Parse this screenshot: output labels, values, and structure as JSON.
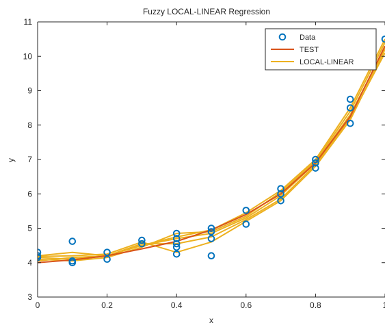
{
  "chart_data": {
    "type": "scatter",
    "title": "Fuzzy LOCAL-LINEAR Regression",
    "xlabel": "x",
    "ylabel": "y",
    "xlim": [
      0,
      1
    ],
    "ylim": [
      3,
      11
    ],
    "xticks": [
      0,
      0.2,
      0.4,
      0.6,
      0.8,
      1
    ],
    "xtick_labels": [
      "0",
      "0.2",
      "0.4",
      "0.6",
      "0.8",
      "1"
    ],
    "yticks": [
      3,
      4,
      5,
      6,
      7,
      8,
      9,
      10,
      11
    ],
    "ytick_labels": [
      "3",
      "4",
      "5",
      "6",
      "7",
      "8",
      "9",
      "10",
      "11"
    ],
    "grid": false,
    "legend_position": "top-right",
    "legend": [
      "Data",
      "TEST",
      "LOCAL-LINEAR"
    ],
    "colors": {
      "data": "#0072BD",
      "test": "#D95319",
      "local_linear": "#EDB120",
      "axes": "#262626"
    },
    "series": [
      {
        "name": "Data",
        "kind": "markers",
        "points": [
          [
            0,
            4.3
          ],
          [
            0,
            4.2
          ],
          [
            0,
            4.15
          ],
          [
            0.1,
            4.62
          ],
          [
            0.1,
            4.05
          ],
          [
            0.1,
            4.0
          ],
          [
            0.2,
            4.3
          ],
          [
            0.2,
            4.1
          ],
          [
            0.3,
            4.65
          ],
          [
            0.3,
            4.55
          ],
          [
            0.4,
            4.85
          ],
          [
            0.4,
            4.7
          ],
          [
            0.4,
            4.55
          ],
          [
            0.4,
            4.45
          ],
          [
            0.4,
            4.25
          ],
          [
            0.5,
            5.0
          ],
          [
            0.5,
            4.9
          ],
          [
            0.5,
            4.7
          ],
          [
            0.5,
            4.2
          ],
          [
            0.6,
            5.52
          ],
          [
            0.6,
            5.12
          ],
          [
            0.7,
            6.15
          ],
          [
            0.7,
            6.0
          ],
          [
            0.7,
            5.8
          ],
          [
            0.8,
            7.0
          ],
          [
            0.8,
            6.9
          ],
          [
            0.8,
            6.75
          ],
          [
            0.9,
            8.75
          ],
          [
            0.9,
            8.5
          ],
          [
            0.9,
            8.05
          ],
          [
            1.0,
            10.5
          ]
        ]
      },
      {
        "name": "TEST",
        "kind": "line",
        "points": [
          [
            0,
            4.0
          ],
          [
            0.1,
            4.08
          ],
          [
            0.2,
            4.2
          ],
          [
            0.3,
            4.4
          ],
          [
            0.4,
            4.62
          ],
          [
            0.5,
            4.95
          ],
          [
            0.6,
            5.4
          ],
          [
            0.7,
            6.0
          ],
          [
            0.8,
            6.9
          ],
          [
            0.9,
            8.25
          ],
          [
            1.0,
            10.3
          ]
        ]
      },
      {
        "name": "LOCAL-LINEAR",
        "kind": "lines",
        "lines": [
          [
            [
              0,
              4.15
            ],
            [
              0.1,
              4.1
            ],
            [
              0.2,
              4.2
            ],
            [
              0.3,
              4.5
            ],
            [
              0.4,
              4.7
            ],
            [
              0.5,
              4.85
            ],
            [
              0.6,
              5.3
            ],
            [
              0.7,
              5.95
            ],
            [
              0.8,
              6.9
            ],
            [
              0.9,
              8.3
            ],
            [
              1.0,
              10.25
            ]
          ],
          [
            [
              0,
              4.2
            ],
            [
              0.1,
              4.3
            ],
            [
              0.2,
              4.2
            ],
            [
              0.3,
              4.55
            ],
            [
              0.4,
              4.55
            ],
            [
              0.5,
              4.75
            ],
            [
              0.6,
              5.25
            ],
            [
              0.7,
              5.85
            ],
            [
              0.8,
              6.85
            ],
            [
              0.9,
              8.2
            ],
            [
              1.0,
              10.1
            ]
          ],
          [
            [
              0,
              4.1
            ],
            [
              0.1,
              4.05
            ],
            [
              0.2,
              4.15
            ],
            [
              0.3,
              4.45
            ],
            [
              0.4,
              4.85
            ],
            [
              0.5,
              4.9
            ],
            [
              0.6,
              5.35
            ],
            [
              0.7,
              6.05
            ],
            [
              0.8,
              6.95
            ],
            [
              0.9,
              8.4
            ],
            [
              1.0,
              10.4
            ]
          ],
          [
            [
              0,
              4.18
            ],
            [
              0.1,
              4.2
            ],
            [
              0.2,
              4.25
            ],
            [
              0.3,
              4.6
            ],
            [
              0.4,
              4.3
            ],
            [
              0.5,
              4.6
            ],
            [
              0.6,
              5.2
            ],
            [
              0.7,
              5.8
            ],
            [
              0.8,
              6.8
            ],
            [
              0.9,
              8.15
            ],
            [
              1.0,
              10.2
            ]
          ],
          [
            [
              0,
              4.05
            ],
            [
              0.1,
              4.15
            ],
            [
              0.2,
              4.2
            ],
            [
              0.3,
              4.5
            ],
            [
              0.4,
              4.75
            ],
            [
              0.5,
              4.95
            ],
            [
              0.6,
              5.45
            ],
            [
              0.7,
              6.1
            ],
            [
              0.8,
              7.0
            ],
            [
              0.9,
              8.5
            ],
            [
              1.0,
              10.5
            ]
          ]
        ]
      }
    ]
  }
}
